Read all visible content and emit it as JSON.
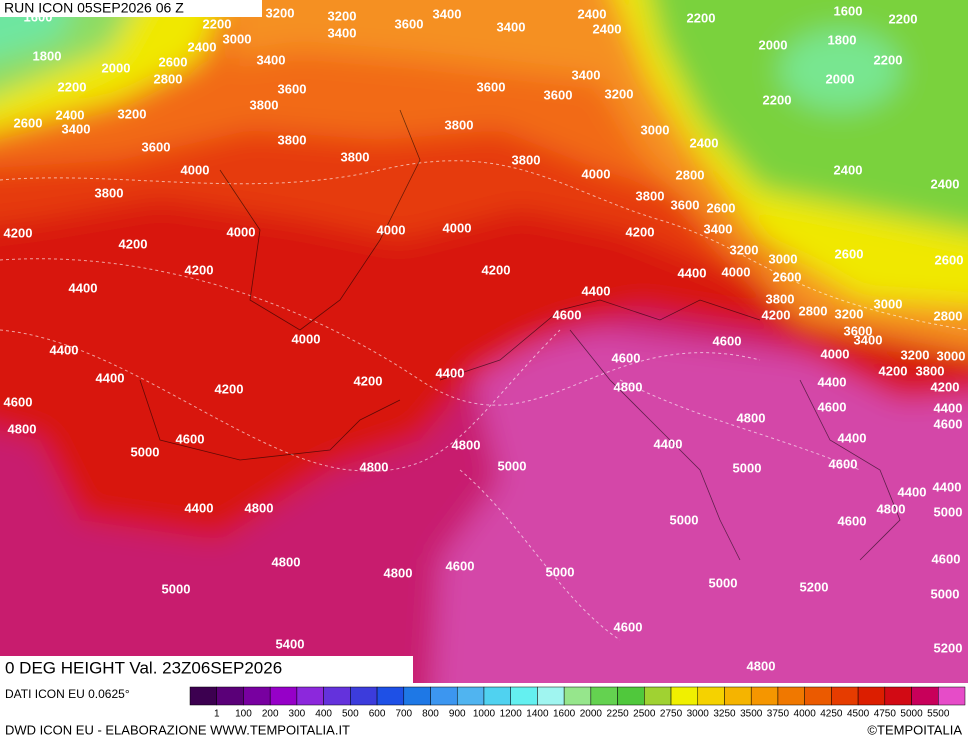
{
  "header": {
    "run": "RUN ICON 05SEP2026 06 Z",
    "field": "0 DEG HEIGHT Val. 23Z06SEP2026"
  },
  "source": "DATI ICON EU 0.0625°",
  "footer": {
    "credit": "DWD ICON EU - ELABORAZIONE WWW.TEMPOITALIA.IT",
    "copyright": "©TEMPOITALIA"
  },
  "colorbar": {
    "ticks": [
      1,
      100,
      200,
      300,
      400,
      500,
      600,
      700,
      800,
      900,
      1000,
      1200,
      1400,
      1600,
      2000,
      2250,
      2500,
      2750,
      3000,
      3250,
      3500,
      3750,
      4000,
      4250,
      4500,
      4750,
      5000,
      5500
    ],
    "colors": [
      "#3c0050",
      "#5a0078",
      "#7800a0",
      "#9600c8",
      "#8c28dc",
      "#6432dc",
      "#3c3cdc",
      "#1e50e6",
      "#1e78e6",
      "#3c96f0",
      "#50b4f0",
      "#50d2f0",
      "#64f0f0",
      "#a0f5f0",
      "#96e68c",
      "#64d250",
      "#50c83c",
      "#a0d232",
      "#f0f000",
      "#f5d200",
      "#f5b400",
      "#f59600",
      "#f07800",
      "#eb5a00",
      "#e63c00",
      "#dc1e00",
      "#d20a14",
      "#c8005a",
      "#e64cc8"
    ]
  },
  "contour_labels": [
    1600,
    2200,
    3200,
    3000,
    3200,
    3400,
    3600,
    3400,
    3400,
    2400,
    2400,
    2200,
    1600,
    2200,
    2400,
    2600,
    1800,
    2000,
    3400,
    2000,
    1800,
    2200,
    2800,
    2200,
    3600,
    3600,
    3400,
    3600,
    3200,
    2000,
    2400,
    3200,
    3800,
    2200,
    2600,
    3400,
    3800,
    3000,
    3600,
    3800,
    2400,
    3800,
    3800,
    4000,
    4000,
    2800,
    2400,
    2400,
    3800,
    3800,
    3600,
    2600,
    4200,
    4000,
    4000,
    4000,
    4200,
    3400,
    4200,
    3200,
    2600,
    2600,
    4200,
    4200,
    4400,
    4000,
    3000,
    2600,
    4400,
    4400,
    3800,
    2800,
    3200,
    3000,
    2800,
    4600,
    4200,
    3600,
    4000,
    4600,
    3400,
    4400,
    4600,
    4000,
    3200,
    3000,
    4400,
    4200,
    4400,
    4200,
    3800,
    4200,
    4800,
    4400,
    4200,
    4600,
    4600,
    4400,
    4800,
    4800,
    4600,
    4800,
    4400,
    4600,
    5000,
    4400,
    4800,
    5000,
    5000,
    4600,
    4400,
    4400,
    4400,
    4800,
    4800,
    5000,
    5000,
    4600,
    4800,
    4600,
    4800,
    5000,
    4600,
    5000,
    5000,
    5200,
    5000,
    4600,
    5400,
    5200,
    4800
  ]
}
